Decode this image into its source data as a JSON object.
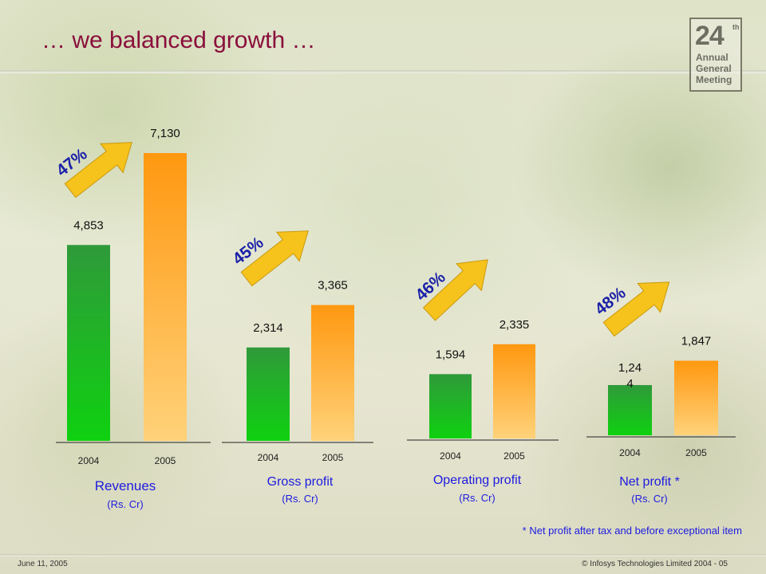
{
  "slide": {
    "title": "… we balanced growth …",
    "footnote": "* Net profit after tax and before exceptional item",
    "date": "June 11, 2005",
    "copyright": "© Infosys Technologies Limited 2004 - 05"
  },
  "logo": {
    "number": "24",
    "superscript": "th",
    "line1": "Annual",
    "line2": "General",
    "line3": "Meeting"
  },
  "colors": {
    "bar_2004": "#17b81a",
    "bar_2005": "#ffa21a",
    "arrow": "#f6c21c",
    "percent_text": "#1b21a8",
    "metric_label": "#1d1ae0"
  },
  "chart_data": [
    {
      "type": "bar",
      "categories": [
        "2004",
        "2005"
      ],
      "values": [
        4853,
        7130
      ],
      "value_labels": [
        "4,853",
        "7,130"
      ],
      "growth_label": "47%",
      "title": "Revenues",
      "unit": "(Rs. Cr)"
    },
    {
      "type": "bar",
      "categories": [
        "2004",
        "2005"
      ],
      "values": [
        2314,
        3365
      ],
      "value_labels": [
        "2,314",
        "3,365"
      ],
      "growth_label": "45%",
      "title": "Gross profit",
      "unit": "(Rs. Cr)"
    },
    {
      "type": "bar",
      "categories": [
        "2004",
        "2005"
      ],
      "values": [
        1594,
        2335
      ],
      "value_labels": [
        "1,594",
        "2,335"
      ],
      "growth_label": "46%",
      "title": "Operating profit",
      "unit": "(Rs. Cr)"
    },
    {
      "type": "bar",
      "categories": [
        "2004",
        "2005"
      ],
      "values": [
        1244,
        1847
      ],
      "value_labels": [
        "1,24\n4",
        "1,847"
      ],
      "growth_label": "48%",
      "title": "Net profit *",
      "unit": "(Rs. Cr)"
    }
  ]
}
